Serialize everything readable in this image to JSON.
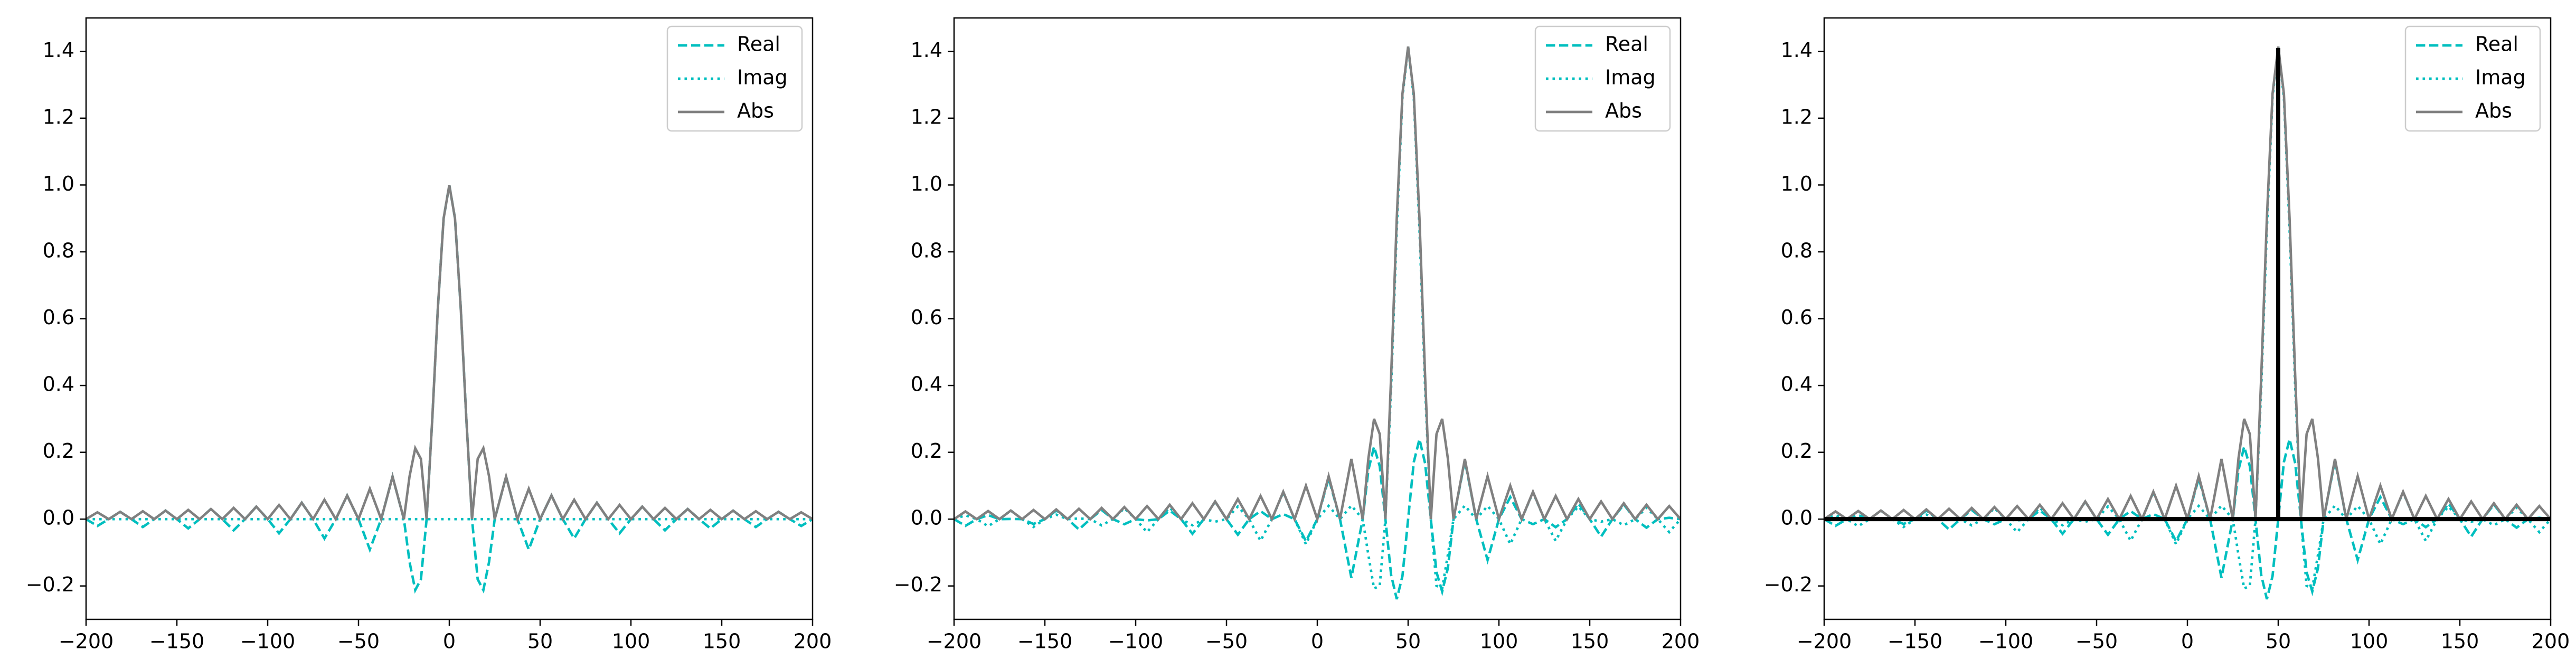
{
  "chart_data": [
    {
      "type": "line",
      "xlim": [
        -200,
        200
      ],
      "ylim": [
        -0.3,
        1.5
      ],
      "xticks": [
        {
          "value": -200,
          "label": "−200"
        },
        {
          "value": -150,
          "label": "−150"
        },
        {
          "value": -100,
          "label": "−100"
        },
        {
          "value": -50,
          "label": "−50"
        },
        0,
        50,
        100,
        150,
        200
      ],
      "yticks": [
        {
          "value": -0.2,
          "label": "−0.2"
        },
        {
          "value": 0,
          "label": "0.0"
        },
        0.2,
        0.4,
        0.6,
        0.8,
        {
          "value": 1,
          "label": "1.0"
        },
        1.2,
        1.4
      ],
      "legend": "upper right",
      "x": [
        -200,
        -193.75,
        -187.5,
        -181.25,
        -175,
        -168.75,
        -162.5,
        -156.25,
        -150,
        -143.75,
        -137.5,
        -131.25,
        -125,
        -118.75,
        -112.5,
        -106.25,
        -100,
        -93.75,
        -87.5,
        -81.25,
        -75,
        -68.75,
        -62.5,
        -56.25,
        -50,
        -43.75,
        -37.5,
        -31.25,
        -25,
        -21.875,
        -18.75,
        -15.625,
        -12.5,
        -9.375,
        -6.25,
        -3.125,
        0,
        3.125,
        6.25,
        9.375,
        12.5,
        15.625,
        18.75,
        21.875,
        25,
        31.25,
        37.5,
        43.75,
        50,
        56.25,
        62.5,
        68.75,
        75,
        81.25,
        87.5,
        93.75,
        100,
        106.25,
        112.5,
        118.75,
        125,
        131.25,
        137.5,
        143.75,
        150,
        156.25,
        162.5,
        168.75,
        175,
        181.25,
        187.5,
        193.75,
        200
      ],
      "series": [
        {
          "name": "Real",
          "color": "#00bfbf",
          "linestyle": "dashed",
          "values": [
            0,
            -0.0205,
            0,
            0.022,
            0,
            -0.0236,
            0,
            0.0255,
            0,
            -0.0277,
            0,
            0.0303,
            0,
            -0.0335,
            0,
            0.0374,
            0,
            -0.0424,
            0,
            0.049,
            0,
            -0.0579,
            0,
            0.0707,
            0,
            -0.0909,
            0,
            0.1273,
            0,
            -0.1286,
            -0.2122,
            -0.1801,
            0,
            0.3001,
            0.6366,
            0.9003,
            1,
            0.9003,
            0.6366,
            0.3001,
            0,
            -0.1801,
            -0.2122,
            -0.1286,
            0,
            0.1273,
            0,
            -0.0909,
            0,
            0.0707,
            0,
            -0.0579,
            0,
            0.049,
            0,
            -0.0424,
            0,
            0.0374,
            0,
            -0.0335,
            0,
            0.0303,
            0,
            -0.0277,
            0,
            0.0255,
            0,
            -0.0236,
            0,
            0.022,
            0,
            -0.0205,
            0
          ]
        },
        {
          "name": "Imag",
          "color": "#00bfbf",
          "linestyle": "dotted",
          "values": [
            0,
            0,
            0,
            0,
            0,
            0,
            0,
            0,
            0,
            0,
            0,
            0,
            0,
            0,
            0,
            0,
            0,
            0,
            0,
            0,
            0,
            0,
            0,
            0,
            0,
            0,
            0,
            0,
            0,
            0,
            0,
            0,
            0,
            0,
            0,
            0,
            0,
            0,
            0,
            0,
            0,
            0,
            0,
            0,
            0,
            0,
            0,
            0,
            0,
            0,
            0,
            0,
            0,
            0,
            0,
            0,
            0,
            0,
            0,
            0,
            0,
            0,
            0,
            0,
            0,
            0,
            0,
            0,
            0,
            0,
            0,
            0,
            0
          ]
        },
        {
          "name": "Abs",
          "color": "#808080",
          "linestyle": "solid",
          "values": [
            0,
            0.0205,
            0,
            0.022,
            0,
            0.0236,
            0,
            0.0255,
            0,
            0.0277,
            0,
            0.0303,
            0,
            0.0335,
            0,
            0.0374,
            0,
            0.0424,
            0,
            0.049,
            0,
            0.0579,
            0,
            0.0707,
            0,
            0.0909,
            0,
            0.1273,
            0,
            0.1286,
            0.2122,
            0.1801,
            0,
            0.3001,
            0.6366,
            0.9003,
            1,
            0.9003,
            0.6366,
            0.3001,
            0,
            0.1801,
            0.2122,
            0.1286,
            0,
            0.1273,
            0,
            0.0909,
            0,
            0.0707,
            0,
            0.0579,
            0,
            0.049,
            0,
            0.0424,
            0,
            0.0374,
            0,
            0.0335,
            0,
            0.0303,
            0,
            0.0277,
            0,
            0.0255,
            0,
            0.0236,
            0,
            0.022,
            0,
            0.0205,
            0
          ]
        }
      ]
    },
    {
      "type": "line",
      "xlim": [
        -200,
        200
      ],
      "ylim": [
        -0.3,
        1.5
      ],
      "xticks": [
        {
          "value": -200,
          "label": "−200"
        },
        {
          "value": -150,
          "label": "−150"
        },
        {
          "value": -100,
          "label": "−100"
        },
        {
          "value": -50,
          "label": "−50"
        },
        0,
        50,
        100,
        150,
        200
      ],
      "yticks": [
        {
          "value": -0.2,
          "label": "−0.2"
        },
        {
          "value": 0,
          "label": "0.0"
        },
        0.2,
        0.4,
        0.6,
        0.8,
        {
          "value": 1,
          "label": "1.0"
        },
        1.2,
        1.4
      ],
      "legend": "upper right",
      "x": [
        -200,
        -193.75,
        -187.5,
        -181.25,
        -175,
        -168.75,
        -162.5,
        -156.25,
        -150,
        -143.75,
        -137.5,
        -131.25,
        -125,
        -118.75,
        -112.5,
        -106.25,
        -100,
        -93.75,
        -87.5,
        -81.25,
        -75,
        -68.75,
        -62.5,
        -56.25,
        -50,
        -43.75,
        -37.5,
        -31.25,
        -25,
        -18.75,
        -12.5,
        -6.25,
        0,
        6.25,
        12.5,
        18.75,
        25,
        28.125,
        31.25,
        34.375,
        37.5,
        40.625,
        43.75,
        46.875,
        50,
        53.125,
        56.25,
        59.375,
        62.5,
        65.625,
        68.75,
        71.875,
        75,
        81.25,
        87.5,
        93.75,
        100,
        106.25,
        112.5,
        118.75,
        125,
        131.25,
        137.5,
        143.75,
        150,
        156.25,
        162.5,
        168.75,
        175,
        181.25,
        187.5,
        193.75,
        200
      ],
      "series": [
        {
          "name": "Real",
          "color": "#00bfbf",
          "linestyle": "dashed",
          "values": [
            0,
            -0.0201,
            0,
            0.0121,
            0,
            0.0005,
            0,
            -0.0144,
            0,
            0.0257,
            0,
            -0.0309,
            0,
            0.0275,
            0,
            -0.0152,
            0,
            -0.004,
            0,
            0.0256,
            0,
            -0.0438,
            0,
            0.0524,
            0,
            -0.0466,
            0,
            0.024,
            0,
            0.0151,
            0,
            -0.0661,
            0,
            0.1224,
            0,
            -0.1754,
            0,
            0.147,
            0.2167,
            0.1584,
            0,
            -0.1664,
            -0.2395,
            -0.1706,
            0,
            0.1706,
            0.2395,
            0.1664,
            0,
            -0.1584,
            -0.2167,
            -0.147,
            0,
            0.1754,
            0,
            -0.1224,
            0,
            0.0661,
            0,
            -0.0151,
            0,
            -0.024,
            0,
            0.0466,
            0,
            -0.0524,
            0,
            0.0438,
            0,
            -0.0256,
            0,
            0.004,
            0
          ]
        },
        {
          "name": "Imag",
          "color": "#00bfbf",
          "linestyle": "dotted",
          "values": [
            0,
            0.0114,
            0,
            -0.0211,
            0,
            0.0257,
            0,
            -0.0232,
            0,
            0.0134,
            0,
            0.0018,
            0,
            -0.0187,
            0,
            0.0326,
            0,
            -0.0389,
            0,
            0.0344,
            0,
            -0.0182,
            0,
            -0.0076,
            0,
            0.0378,
            0,
            -0.065,
            0,
            0.0804,
            0,
            -0.075,
            0,
            0.0394,
            0,
            0.0405,
            0,
            -0.1073,
            -0.2077,
            -0.1994,
            0,
            0.3904,
            0.8679,
            1.2617,
            1.4142,
            1.2617,
            0.8679,
            0.3904,
            0,
            -0.1994,
            -0.2077,
            -0.1073,
            0,
            0.0405,
            0,
            0.0394,
            0,
            -0.075,
            0,
            0.0804,
            0,
            -0.065,
            0,
            0.0378,
            0,
            -0.0076,
            0,
            -0.0182,
            0,
            0.0344,
            0,
            -0.0389,
            0
          ]
        },
        {
          "name": "Abs",
          "color": "#808080",
          "linestyle": "solid",
          "values": [
            0,
            0.0231,
            0,
            0.0243,
            0,
            0.0257,
            0,
            0.0273,
            0,
            0.029,
            0,
            0.031,
            0,
            0.0333,
            0,
            0.036,
            0,
            0.0391,
            0,
            0.0429,
            0,
            0.0474,
            0,
            0.0529,
            0,
            0.06,
            0,
            0.0693,
            0,
            0.0818,
            0,
            0.1,
            0,
            0.1286,
            0,
            0.1801,
            0,
            0.1819,
            0.3001,
            0.2547,
            0,
            0.4244,
            0.9003,
            1.2732,
            1.4142,
            1.2732,
            0.9003,
            0.4244,
            0,
            0.2547,
            0.3001,
            0.1819,
            0,
            0.1801,
            0,
            0.1286,
            0,
            0.1,
            0,
            0.0818,
            0,
            0.0693,
            0,
            0.06,
            0,
            0.0529,
            0,
            0.0474,
            0,
            0.0429,
            0,
            0.0391,
            0
          ]
        }
      ]
    },
    {
      "type": "line",
      "xlim": [
        -200,
        200
      ],
      "ylim": [
        -0.3,
        1.5
      ],
      "xticks": [
        {
          "value": -200,
          "label": "−200"
        },
        {
          "value": -150,
          "label": "−150"
        },
        {
          "value": -100,
          "label": "−100"
        },
        {
          "value": -50,
          "label": "−50"
        },
        0,
        50,
        100,
        150,
        200
      ],
      "yticks": [
        {
          "value": -0.2,
          "label": "−0.2"
        },
        {
          "value": 0,
          "label": "0.0"
        },
        0.2,
        0.4,
        0.6,
        0.8,
        {
          "value": 1,
          "label": "1.0"
        },
        1.2,
        1.4
      ],
      "legend": "upper right",
      "x": [
        -200,
        -193.75,
        -187.5,
        -181.25,
        -175,
        -168.75,
        -162.5,
        -156.25,
        -150,
        -143.75,
        -137.5,
        -131.25,
        -125,
        -118.75,
        -112.5,
        -106.25,
        -100,
        -93.75,
        -87.5,
        -81.25,
        -75,
        -68.75,
        -62.5,
        -56.25,
        -50,
        -43.75,
        -37.5,
        -31.25,
        -25,
        -18.75,
        -12.5,
        -6.25,
        0,
        6.25,
        12.5,
        18.75,
        25,
        28.125,
        31.25,
        34.375,
        37.5,
        40.625,
        43.75,
        46.875,
        50,
        53.125,
        56.25,
        59.375,
        62.5,
        65.625,
        68.75,
        71.875,
        75,
        81.25,
        87.5,
        93.75,
        100,
        106.25,
        112.5,
        118.75,
        125,
        131.25,
        137.5,
        143.75,
        150,
        156.25,
        162.5,
        168.75,
        175,
        181.25,
        187.5,
        193.75,
        200
      ],
      "series": [
        {
          "name": "Real",
          "color": "#00bfbf",
          "linestyle": "dashed",
          "values": [
            0,
            -0.0201,
            0,
            0.0121,
            0,
            0.0005,
            0,
            -0.0144,
            0,
            0.0257,
            0,
            -0.0309,
            0,
            0.0275,
            0,
            -0.0152,
            0,
            -0.004,
            0,
            0.0256,
            0,
            -0.0438,
            0,
            0.0524,
            0,
            -0.0466,
            0,
            0.024,
            0,
            0.0151,
            0,
            -0.0661,
            0,
            0.1224,
            0,
            -0.1754,
            0,
            0.147,
            0.2167,
            0.1584,
            0,
            -0.1664,
            -0.2395,
            -0.1706,
            0,
            0.1706,
            0.2395,
            0.1664,
            0,
            -0.1584,
            -0.2167,
            -0.147,
            0,
            0.1754,
            0,
            -0.1224,
            0,
            0.0661,
            0,
            -0.0151,
            0,
            -0.024,
            0,
            0.0466,
            0,
            -0.0524,
            0,
            0.0438,
            0,
            -0.0256,
            0,
            0.004,
            0
          ]
        },
        {
          "name": "Imag",
          "color": "#00bfbf",
          "linestyle": "dotted",
          "values": [
            0,
            0.0114,
            0,
            -0.0211,
            0,
            0.0257,
            0,
            -0.0232,
            0,
            0.0134,
            0,
            0.0018,
            0,
            -0.0187,
            0,
            0.0326,
            0,
            -0.0389,
            0,
            0.0344,
            0,
            -0.0182,
            0,
            -0.0076,
            0,
            0.0378,
            0,
            -0.065,
            0,
            0.0804,
            0,
            -0.075,
            0,
            0.0394,
            0,
            0.0405,
            0,
            -0.1073,
            -0.2077,
            -0.1994,
            0,
            0.3904,
            0.8679,
            1.2617,
            1.4142,
            1.2617,
            0.8679,
            0.3904,
            0,
            -0.1994,
            -0.2077,
            -0.1073,
            0,
            0.0405,
            0,
            0.0394,
            0,
            -0.075,
            0,
            0.0804,
            0,
            -0.065,
            0,
            0.0378,
            0,
            -0.0076,
            0,
            -0.0182,
            0,
            0.0344,
            0,
            -0.0389,
            0
          ]
        },
        {
          "name": "Abs",
          "color": "#808080",
          "linestyle": "solid",
          "values": [
            0,
            0.0231,
            0,
            0.0243,
            0,
            0.0257,
            0,
            0.0273,
            0,
            0.029,
            0,
            0.031,
            0,
            0.0333,
            0,
            0.036,
            0,
            0.0391,
            0,
            0.0429,
            0,
            0.0474,
            0,
            0.0529,
            0,
            0.06,
            0,
            0.0693,
            0,
            0.0818,
            0,
            0.1,
            0,
            0.1286,
            0,
            0.1801,
            0,
            0.1819,
            0.3001,
            0.2547,
            0,
            0.4244,
            0.9003,
            1.2732,
            1.4142,
            1.2732,
            0.9003,
            0.4244,
            0,
            0.2547,
            0.3001,
            0.1819,
            0,
            0.1801,
            0,
            0.1286,
            0,
            0.1,
            0,
            0.0818,
            0,
            0.0693,
            0,
            0.06,
            0,
            0.0529,
            0,
            0.0474,
            0,
            0.0429,
            0,
            0.0391,
            0
          ]
        },
        {
          "color": "#000000",
          "linestyle": "solid",
          "x": [
            -200,
            50,
            50,
            50,
            200
          ],
          "values": [
            0,
            0,
            1.41,
            0,
            0
          ]
        }
      ]
    }
  ]
}
